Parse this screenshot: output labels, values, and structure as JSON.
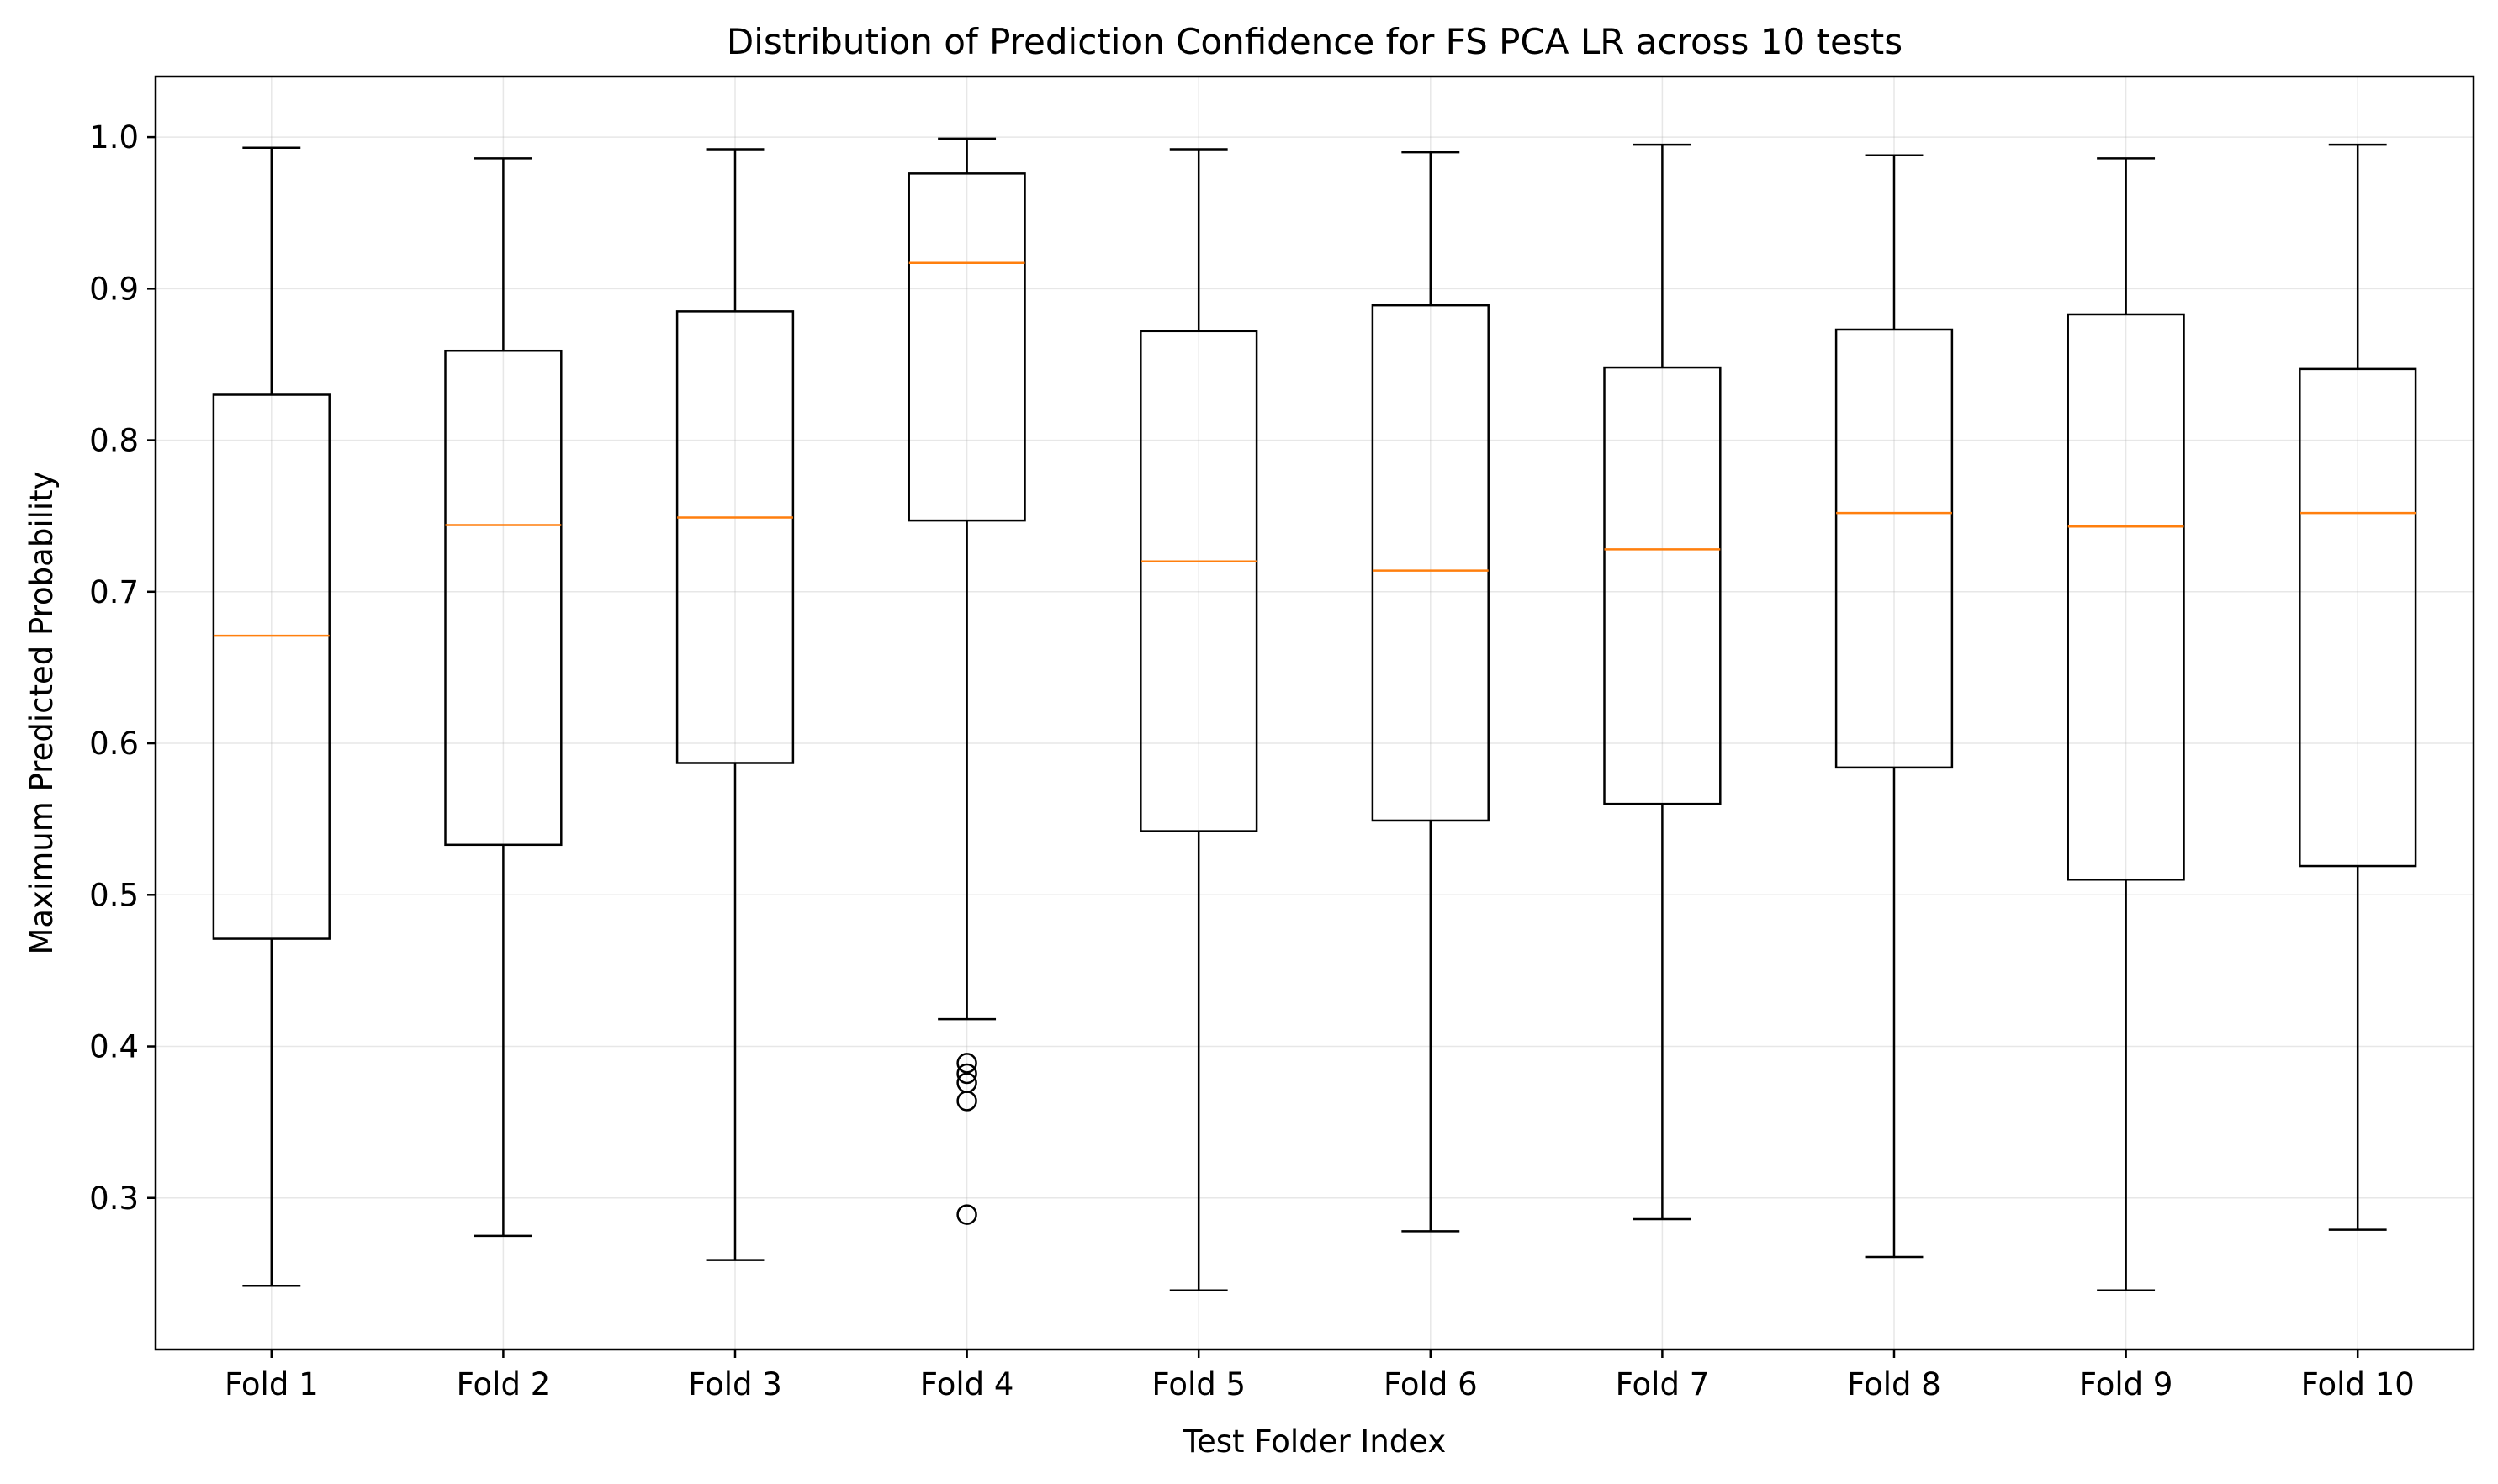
{
  "chart_data": {
    "type": "boxplot",
    "title": "Distribution of Prediction Confidence for FS PCA LR across 10 tests",
    "xlabel": "Test Folder Index",
    "ylabel": "Maximum Predicted Probability",
    "categories": [
      "Fold 1",
      "Fold 2",
      "Fold 3",
      "Fold 4",
      "Fold 5",
      "Fold 6",
      "Fold 7",
      "Fold 8",
      "Fold 9",
      "Fold 10"
    ],
    "ylim": [
      0.2,
      1.04
    ],
    "yticks": [
      0.3,
      0.4,
      0.5,
      0.6,
      0.7,
      0.8,
      0.9,
      1.0
    ],
    "ytick_labels": [
      "0.3",
      "0.4",
      "0.5",
      "0.6",
      "0.7",
      "0.8",
      "0.9",
      "1.0"
    ],
    "grid": true,
    "boxes": [
      {
        "label": "Fold 1",
        "whisker_low": 0.242,
        "q1": 0.471,
        "median": 0.671,
        "q3": 0.83,
        "whisker_high": 0.993,
        "fliers": []
      },
      {
        "label": "Fold 2",
        "whisker_low": 0.275,
        "q1": 0.533,
        "median": 0.744,
        "q3": 0.859,
        "whisker_high": 0.986,
        "fliers": []
      },
      {
        "label": "Fold 3",
        "whisker_low": 0.259,
        "q1": 0.587,
        "median": 0.749,
        "q3": 0.885,
        "whisker_high": 0.992,
        "fliers": []
      },
      {
        "label": "Fold 4",
        "whisker_low": 0.418,
        "q1": 0.747,
        "median": 0.917,
        "q3": 0.976,
        "whisker_high": 0.999,
        "fliers": [
          0.389,
          0.382,
          0.376,
          0.364,
          0.289
        ]
      },
      {
        "label": "Fold 5",
        "whisker_low": 0.239,
        "q1": 0.542,
        "median": 0.72,
        "q3": 0.872,
        "whisker_high": 0.992,
        "fliers": []
      },
      {
        "label": "Fold 6",
        "whisker_low": 0.278,
        "q1": 0.549,
        "median": 0.714,
        "q3": 0.889,
        "whisker_high": 0.99,
        "fliers": []
      },
      {
        "label": "Fold 7",
        "whisker_low": 0.286,
        "q1": 0.56,
        "median": 0.728,
        "q3": 0.848,
        "whisker_high": 0.995,
        "fliers": []
      },
      {
        "label": "Fold 8",
        "whisker_low": 0.261,
        "q1": 0.584,
        "median": 0.752,
        "q3": 0.873,
        "whisker_high": 0.988,
        "fliers": []
      },
      {
        "label": "Fold 9",
        "whisker_low": 0.239,
        "q1": 0.51,
        "median": 0.743,
        "q3": 0.883,
        "whisker_high": 0.986,
        "fliers": []
      },
      {
        "label": "Fold 10",
        "whisker_low": 0.279,
        "q1": 0.519,
        "median": 0.752,
        "q3": 0.847,
        "whisker_high": 0.995,
        "fliers": []
      }
    ],
    "colors": {
      "box": "#000000",
      "median": "#ff7f0e",
      "grid": "#b0b0b0"
    }
  }
}
